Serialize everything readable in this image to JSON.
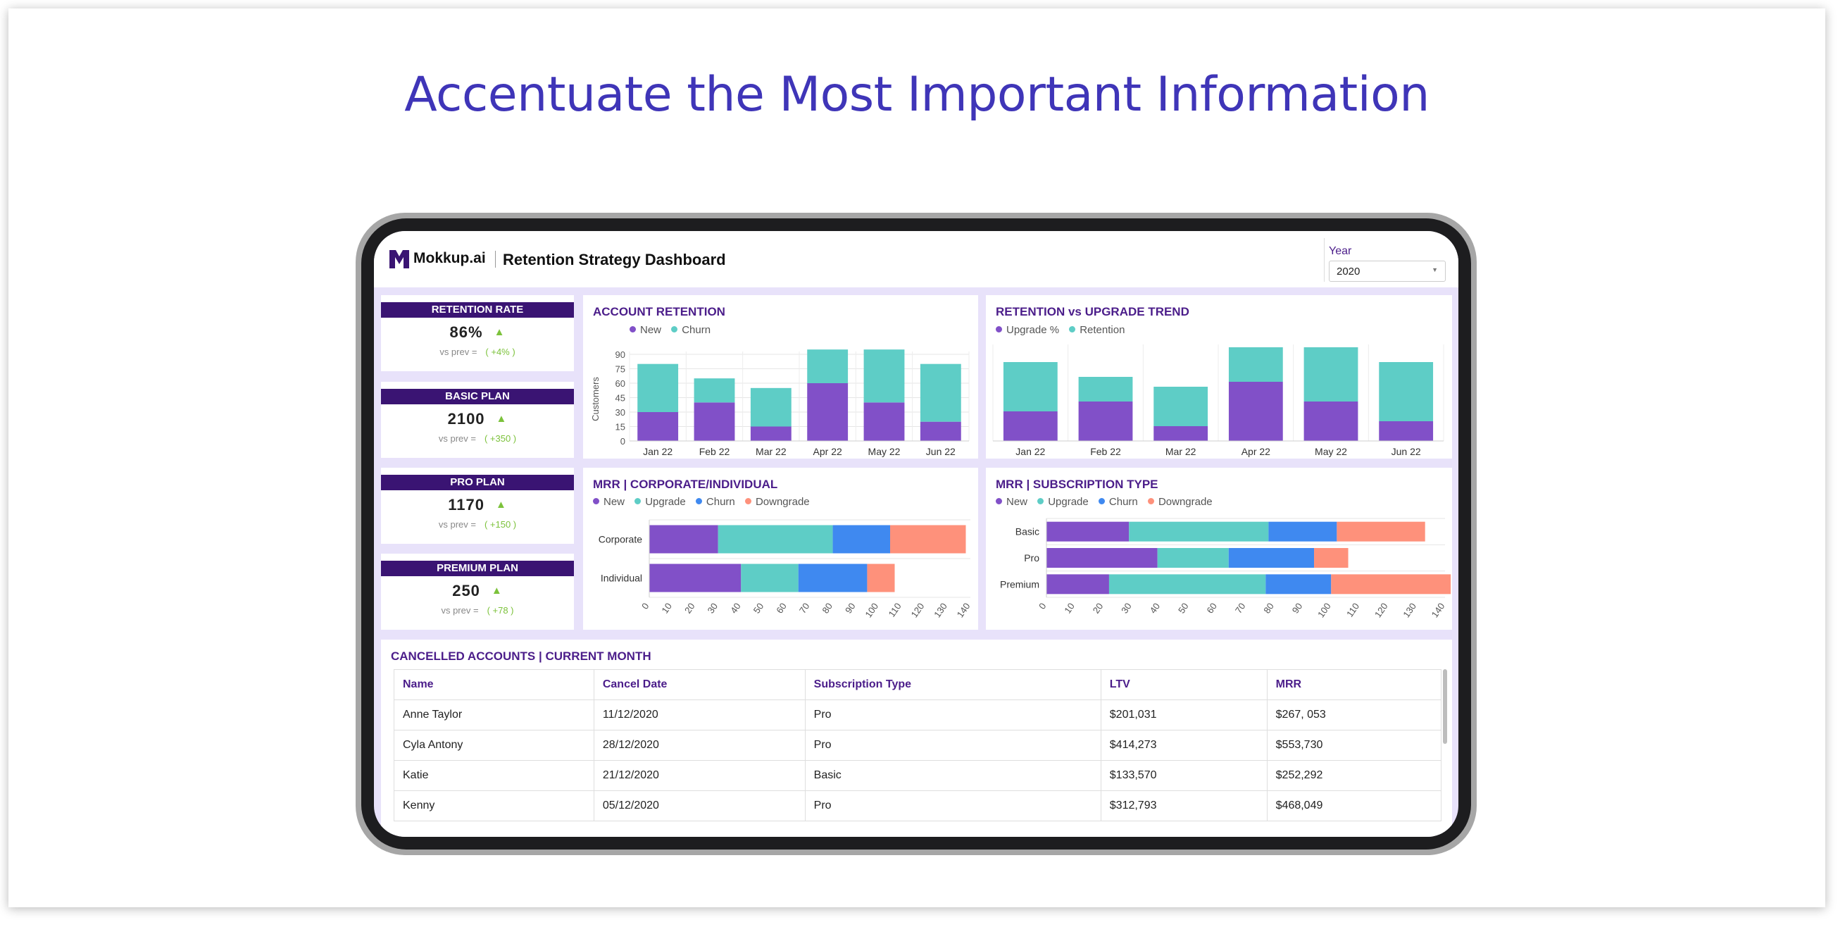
{
  "headline": "Accentuate the Most Important Information",
  "header": {
    "brand": "Mokkup.ai",
    "title": "Retention Strategy Dashboard",
    "year_label": "Year",
    "year_value": "2020",
    "colors": {
      "brand": "#3a1473",
      "accent": "#4b1d8a"
    }
  },
  "kpis": [
    {
      "label": "RETENTION RATE",
      "value": "86%",
      "sub": "vs prev =",
      "delta": "( +4% )",
      "trend_icon": "triangle-up-icon"
    },
    {
      "label": "BASIC PLAN",
      "value": "2100",
      "sub": "vs prev =",
      "delta": "( +350 )",
      "trend_icon": "triangle-up-icon"
    },
    {
      "label": "PRO PLAN",
      "value": "1170",
      "sub": "vs prev =",
      "delta": "( +150 )",
      "trend_icon": "triangle-up-icon"
    },
    {
      "label": "PREMIUM PLAN",
      "value": "250",
      "sub": "vs prev =",
      "delta": "( +78 )",
      "trend_icon": "triangle-up-icon"
    }
  ],
  "colors": {
    "new": "#8150c8",
    "churn": "#5ecdc6",
    "upgrade": "#5ecdc6",
    "churn_blue": "#3f89f0",
    "downgrade": "#fe917b"
  },
  "panels": {
    "account_retention": "ACCOUNT RETENTION",
    "retention_upgrade": "RETENTION vs UPGRADE TREND",
    "mrr_corporate": "MRR | CORPORATE/INDIVIDUAL",
    "mrr_subscription": "MRR | SUBSCRIPTION TYPE",
    "cancelled": "CANCELLED ACCOUNTS | CURRENT MONTH"
  },
  "chart_data": [
    {
      "type": "bar",
      "stacked": true,
      "title": "ACCOUNT RETENTION",
      "ylabel": "Customers",
      "ylim": [
        0,
        90
      ],
      "yticks": [
        0,
        15,
        30,
        45,
        60,
        75,
        90
      ],
      "categories": [
        "Jan 22",
        "Feb 22",
        "Mar 22",
        "Apr 22",
        "May 22",
        "Jun 22"
      ],
      "series": [
        {
          "name": "New",
          "values": [
            30,
            40,
            15,
            60,
            40,
            20
          ]
        },
        {
          "name": "Churn",
          "values": [
            50,
            25,
            40,
            35,
            55,
            60
          ]
        }
      ]
    },
    {
      "type": "bar",
      "stacked": true,
      "title": "RETENTION vs UPGRADE TREND",
      "categories": [
        "Jan 22",
        "Feb 22",
        "Mar 22",
        "Apr 22",
        "May 22",
        "Jun 22"
      ],
      "series": [
        {
          "name": "Upgrade %",
          "values": [
            30,
            40,
            15,
            60,
            40,
            20
          ]
        },
        {
          "name": "Retention",
          "values": [
            50,
            25,
            40,
            35,
            55,
            60
          ]
        }
      ],
      "ylim": [
        0,
        95
      ]
    },
    {
      "type": "bar",
      "orientation": "horizontal",
      "stacked": true,
      "title": "MRR | CORPORATE/INDIVIDUAL",
      "categories": [
        "Corporate",
        "Individual"
      ],
      "xticks": [
        0,
        10,
        20,
        30,
        40,
        50,
        60,
        70,
        80,
        90,
        100,
        110,
        120,
        130,
        140
      ],
      "xlim": [
        0,
        140
      ],
      "series": [
        {
          "name": "New",
          "values": [
            30,
            40
          ]
        },
        {
          "name": "Upgrade",
          "values": [
            50,
            25
          ]
        },
        {
          "name": "Churn",
          "values": [
            25,
            30
          ]
        },
        {
          "name": "Downgrade",
          "values": [
            33,
            12
          ]
        }
      ]
    },
    {
      "type": "bar",
      "orientation": "horizontal",
      "stacked": true,
      "title": "MRR | SUBSCRIPTION TYPE",
      "categories": [
        "Basic",
        "Pro",
        "Premium"
      ],
      "xticks": [
        0,
        10,
        20,
        30,
        40,
        50,
        60,
        70,
        80,
        90,
        100,
        110,
        120,
        130,
        140
      ],
      "xlim": [
        0,
        140
      ],
      "series": [
        {
          "name": "New",
          "values": [
            29,
            39,
            22
          ]
        },
        {
          "name": "Upgrade",
          "values": [
            49,
            25,
            55
          ]
        },
        {
          "name": "Churn",
          "values": [
            24,
            30,
            23
          ]
        },
        {
          "name": "Downgrade",
          "values": [
            31,
            12,
            42
          ]
        }
      ]
    }
  ],
  "table": {
    "columns": [
      "Name",
      "Cancel Date",
      "Subscription Type",
      "LTV",
      "MRR"
    ],
    "rows": [
      [
        "Anne Taylor",
        "11/12/2020",
        "Pro",
        "$201,031",
        "$267, 053"
      ],
      [
        "Cyla Antony",
        "28/12/2020",
        "Pro",
        "$414,273",
        "$553,730"
      ],
      [
        "Katie",
        "21/12/2020",
        "Basic",
        "$133,570",
        "$252,292"
      ],
      [
        "Kenny",
        "05/12/2020",
        "Pro",
        "$312,793",
        "$468,049"
      ]
    ]
  }
}
